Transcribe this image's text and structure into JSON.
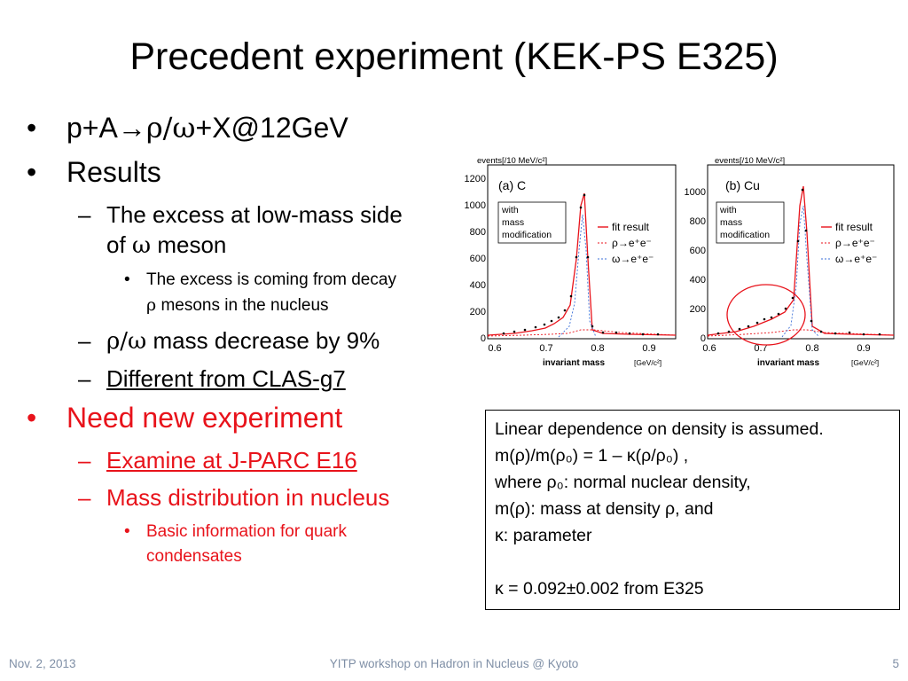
{
  "title": "Precedent experiment (KEK-PS E325)",
  "bullets": {
    "reaction": {
      "pre": "p+A",
      "arrow": "→",
      "greek": "ρ/ω",
      "post": "+X@12GeV"
    },
    "results": "Results",
    "excess": {
      "line1": "The excess at low-mass side",
      "line2_pre": "of ",
      "line2_greek": "ω",
      "line2_post": " meson"
    },
    "excess_sub": {
      "line1": "The excess is coming from decay",
      "line2_greek": "ρ",
      "line2_post": " mesons in the nucleus"
    },
    "mass_decrease": {
      "greek": "ρ/ω",
      "text": " mass decrease by 9%"
    },
    "different": "Different from CLAS-g7",
    "need": "Need new experiment",
    "examine": "Examine at J-PARC E16",
    "mass_dist": "Mass distribution in nucleus",
    "basic": {
      "line1": "Basic information for quark",
      "line2": "condensates"
    },
    "dot": "•",
    "dash": "–"
  },
  "plots": {
    "ylabel": "events[/10 MeV/c²]",
    "xlabel": "invariant mass",
    "xunit": "[GeV/c²]",
    "x_ticks": [
      "0.6",
      "0.7",
      "0.8",
      "0.9"
    ],
    "legend_box": [
      "with",
      "mass",
      "modification"
    ],
    "legend_fit": "fit result",
    "legend_rho": "ρ→e⁺e⁻",
    "legend_omega": "ω→e⁺e⁻",
    "panel_c": {
      "label": "(a) C",
      "y_ticks": [
        "0",
        "200",
        "400",
        "600",
        "800",
        "1000",
        "1200"
      ]
    },
    "panel_cu": {
      "label": "(b) Cu",
      "y_ticks": [
        "0",
        "200",
        "400",
        "600",
        "800",
        "1000"
      ]
    },
    "colors": {
      "fit": "#e8131b",
      "rho": "#e8131b",
      "omega": "#3a6fd8"
    }
  },
  "note": {
    "line1": "Linear dependence on density is assumed.",
    "line2": "m(ρ)/m(ρ₀) = 1 – κ(ρ/ρ₀) ,",
    "line3": "where ρ₀: normal nuclear density,",
    "line4": "m(ρ): mass at density ρ, and",
    "line5": "κ: parameter",
    "line6": "κ = 0.092±0.002 from E325"
  },
  "footer": {
    "date": "Nov. 2, 2013",
    "workshop": "YITP workshop on  Hadron in Nucleus @ Kyoto",
    "page": "5"
  }
}
